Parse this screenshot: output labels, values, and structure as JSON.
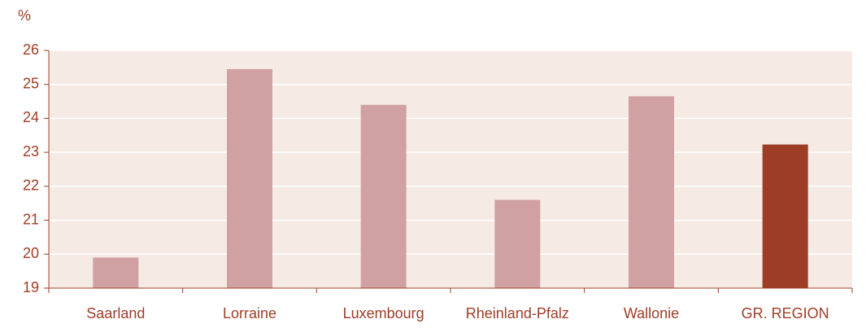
{
  "chart_data": {
    "type": "bar",
    "y_label": "%",
    "categories": [
      "Saarland",
      "Lorraine",
      "Luxembourg",
      "Rheinland-Pfalz",
      "Wallonie",
      "GR. REGION"
    ],
    "values": [
      19.9,
      25.45,
      24.4,
      21.6,
      24.65,
      23.23
    ],
    "colors": [
      "#d0a0a2",
      "#d0a0a2",
      "#d0a0a2",
      "#d0a0a2",
      "#d0a0a2",
      "#9e3d26"
    ],
    "ylim": [
      19,
      26
    ],
    "yticks": [
      19,
      20,
      21,
      22,
      23,
      24,
      25,
      26
    ],
    "grid": true
  }
}
